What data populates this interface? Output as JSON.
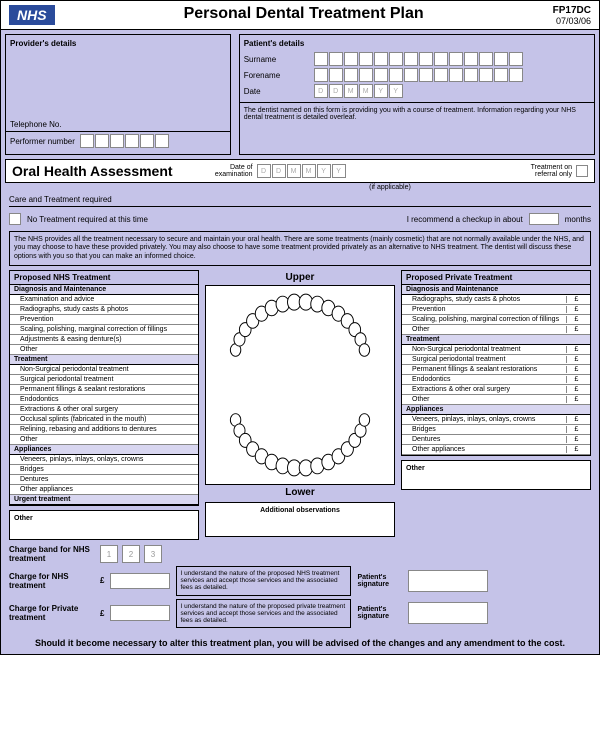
{
  "header": {
    "badge": "NHS",
    "title": "Personal Dental Treatment Plan",
    "code": "FP17DC",
    "date": "07/03/06"
  },
  "provider": {
    "heading": "Provider's details",
    "telephone_label": "Telephone No.",
    "performer_label": "Performer number"
  },
  "patient": {
    "heading": "Patient's details",
    "surname_label": "Surname",
    "forename_label": "Forename",
    "date_label": "Date",
    "date_placeholder": [
      "D",
      "D",
      "M",
      "M",
      "Y",
      "Y"
    ],
    "note": "The dentist named on this form is providing you with a course of treatment. Information regarding your NHS dental treatment is detailed overleaf."
  },
  "assessment": {
    "title": "Oral Health Assessment",
    "exam_date_label": "Date of examination",
    "applicable": "(if applicable)",
    "referral_label": "Treatment on referral only",
    "care_label": "Care and Treatment required",
    "no_treatment": "No Treatment required at this time",
    "checkup": "I recommend a checkup in about",
    "months": "months"
  },
  "disclaimer": "The NHS provides all the treatment necessary to secure and maintain your oral health. There are some treatments (mainly cosmetic) that are not normally available under the NHS, and you may choose to have these provided privately. You may also choose to have some treatment provided privately as an alternative to NHS treatment. The dentist will discuss these options with you so that you can make an informed choice.",
  "nhs_treatment": {
    "header": "Proposed NHS Treatment",
    "sections": [
      {
        "name": "Diagnosis and Maintenance",
        "items": [
          "Examination and advice",
          "Radiographs, study casts & photos",
          "Prevention",
          "Scaling, polishing, marginal correction of fillings",
          "Adjustments & easing denture(s)",
          "Other"
        ]
      },
      {
        "name": "Treatment",
        "items": [
          "Non-Surgical periodontal treatment",
          "Surgical periodontal treatment",
          "Permanent fillings & sealant restorations",
          "Endodontics",
          "Extractions & other oral surgery",
          "Occlusal splints (fabricated in the mouth)",
          "Relining, rebasing and additions to dentures",
          "Other"
        ]
      },
      {
        "name": "Appliances",
        "items": [
          "Veneers, pinlays, inlays, onlays, crowns",
          "Bridges",
          "Dentures",
          "Other appliances"
        ]
      },
      {
        "name": "Urgent treatment",
        "items": []
      }
    ]
  },
  "private_treatment": {
    "header": "Proposed Private Treatment",
    "sections": [
      {
        "name": "Diagnosis and Maintenance",
        "items": [
          "Radiographs, study casts & photos",
          "Prevention",
          "Scaling, polishing, marginal correction of fillings",
          "Other"
        ]
      },
      {
        "name": "Treatment",
        "items": [
          "Non-Surgical periodontal treatment",
          "Surgical periodontal treatment",
          "Permanent fillings & sealant restorations",
          "Endodontics",
          "Extractions & other oral surgery",
          "Other"
        ]
      },
      {
        "name": "Appliances",
        "items": [
          "Veneers, pinlays, inlays, onlays, crowns",
          "Bridges",
          "Dentures",
          "Other appliances"
        ]
      }
    ]
  },
  "teeth": {
    "upper": "Upper",
    "lower": "Lower"
  },
  "other_label": "Other",
  "obs_label": "Additional observations",
  "charges": {
    "band_label": "Charge band for NHS treatment",
    "bands": [
      "1",
      "2",
      "3"
    ],
    "nhs_label": "Charge for NHS treatment",
    "private_label": "Charge for Private treatment",
    "currency": "£",
    "nhs_text": "I understand the nature of the proposed NHS treatment services and accept those services and the associated fees as detailed.",
    "private_text": "I understand the nature of the proposed private treatment services and accept those services and the associated fees as detailed.",
    "sig_label": "Patient's signature"
  },
  "footer": "Should it become necessary to alter this treatment plan, you will be advised of the changes and any amendment to the cost."
}
